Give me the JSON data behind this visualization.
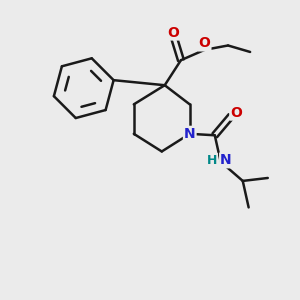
{
  "background_color": "#ebebeb",
  "bond_color": "#1a1a1a",
  "bond_width": 1.8,
  "N_color": "#2222cc",
  "O_color": "#cc0000",
  "H_color": "#008888",
  "font_size_atom": 10,
  "fig_size": [
    3.0,
    3.0
  ],
  "dpi": 100,
  "xlim": [
    0,
    10
  ],
  "ylim": [
    0,
    10
  ]
}
